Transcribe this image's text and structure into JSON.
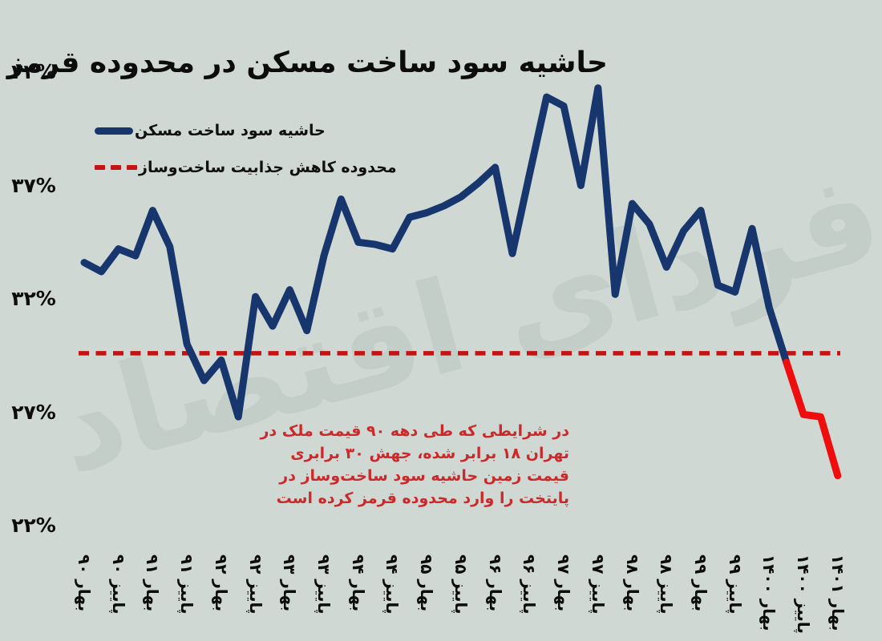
{
  "header": {
    "title": "حاشیه سود ساخت مسکن در محدوده قرمز"
  },
  "watermark": {
    "text": "فردای اقتصاد"
  },
  "legend": {
    "items": [
      {
        "label": "حاشیه سود ساخت مسکن",
        "swatch": "solid-navy-line"
      },
      {
        "label": "محدوده کاهش جذابیت ساخت‌وساز",
        "swatch": "dashed-red-line"
      }
    ]
  },
  "annotation": {
    "lines": [
      "در شرایطی که طی دهه ۹۰ قیمت ملک در",
      "تهران ۱۸ برابر شده، جهش ۳۰ برابری",
      "قیمت زمین حاشیه سود ساخت‌وساز در",
      "پایتخت را وارد محدوده قرمز کرده است"
    ]
  },
  "colors": {
    "background": "#d0d8d4",
    "line_navy": "#16366d",
    "line_red_tail": "#ef0e0e",
    "threshold_red": "#c41313",
    "annotation_red": "#cc2a2a",
    "text_black": "#0c0c0c",
    "watermark": "#c3cec8"
  },
  "chart_data": {
    "type": "line",
    "title": "حاشیه سود ساخت مسکن در محدوده قرمز",
    "frequency": "quarterly (two labeled seasons per year: spring & autumn)",
    "x_tick_labels": [
      "بهار ۹۰",
      "پاییز ۹۰",
      "بهار ۹۱",
      "پاییز ۹۱",
      "بهار ۹۲",
      "پاییز ۹۲",
      "بهار ۹۳",
      "پاییز ۹۳",
      "بهار ۹۴",
      "پاییز ۹۴",
      "بهار ۹۵",
      "پاییز ۹۵",
      "بهار ۹۶",
      "پاییز ۹۶",
      "بهار ۹۷",
      "پاییز ۹۷",
      "بهار ۹۸",
      "پاییز ۹۸",
      "بهار ۹۹",
      "پاییز ۹۹",
      "بهار ۱۴۰۰",
      "پاییز ۱۴۰۰",
      "بهار ۱۴۰۱"
    ],
    "points_per_label_interval": 2,
    "series": [
      {
        "name": "حاشیه سود ساخت مسکن",
        "color": "#16366d",
        "values": [
          33.6,
          33.2,
          34.2,
          33.9,
          35.9,
          34.3,
          30.0,
          28.4,
          29.3,
          26.8,
          32.1,
          30.8,
          32.4,
          30.6,
          33.9,
          36.4,
          34.5,
          34.4,
          34.2,
          35.6,
          35.8,
          36.1,
          36.5,
          37.1,
          37.8,
          34.0,
          37.5,
          40.9,
          40.5,
          37.0,
          41.3,
          32.2,
          36.2,
          35.3,
          33.4,
          35.0,
          35.9,
          32.6,
          32.3,
          35.1,
          31.6,
          29.2,
          26.9,
          26.8,
          24.2
        ]
      }
    ],
    "red_segment": {
      "from_index": 41,
      "color": "#ef0e0e",
      "meaning": "values below the attractiveness threshold (red zone)"
    },
    "threshold_line": {
      "label": "محدوده کاهش جذابیت ساخت‌وساز",
      "value": 29.6,
      "style": "dashed",
      "color": "#c41313"
    },
    "yticks": [
      {
        "label": "۴۲%",
        "value": 42
      },
      {
        "label": "۳۷%",
        "value": 37
      },
      {
        "label": "۳۲%",
        "value": 32
      },
      {
        "label": "۲۷%",
        "value": 27
      },
      {
        "label": "۲۲%",
        "value": 22
      }
    ],
    "ylim": [
      22,
      42
    ],
    "grid": false,
    "legend_position": "top-left"
  }
}
